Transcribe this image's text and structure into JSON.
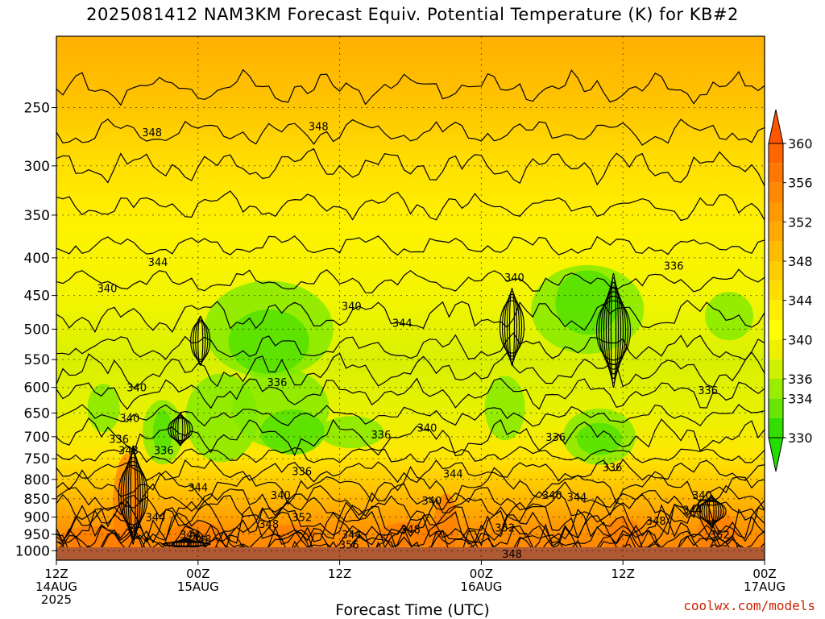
{
  "title": "2025081412 NAM3KM Forecast Equiv. Potential Temperature (K) for KB#2",
  "watermark": "coolwx.com/models",
  "chart_data": {
    "type": "heatmap",
    "title": "2025081412 NAM3KM Forecast Equiv. Potential Temperature (K) for KB#2",
    "xlabel": "Forecast Time (UTC)",
    "ylabel": "",
    "x_ticks": [
      {
        "hour": 0,
        "lines": [
          "12Z",
          "14AUG",
          "2025"
        ]
      },
      {
        "hour": 12,
        "lines": [
          "00Z",
          "15AUG"
        ]
      },
      {
        "hour": 24,
        "lines": [
          "12Z"
        ]
      },
      {
        "hour": 36,
        "lines": [
          "00Z",
          "16AUG"
        ]
      },
      {
        "hour": 48,
        "lines": [
          "12Z"
        ]
      },
      {
        "hour": 60,
        "lines": [
          "00Z",
          "17AUG"
        ]
      }
    ],
    "xlim": [
      0,
      60
    ],
    "y_ticks": [
      250,
      300,
      350,
      400,
      450,
      500,
      550,
      600,
      650,
      700,
      750,
      800,
      850,
      900,
      950,
      1000
    ],
    "ylim_hPa": [
      1030,
      200
    ],
    "y_scale": "log-pressure",
    "colorbar_levels": [
      330,
      332,
      334,
      336,
      338,
      340,
      342,
      344,
      346,
      348,
      350,
      352,
      354,
      356,
      358,
      360,
      362
    ],
    "colorbar_labels": [
      330,
      334,
      336,
      340,
      344,
      348,
      352,
      356,
      360
    ],
    "colorbar_colors": [
      "#33dd00",
      "#66e600",
      "#99ee00",
      "#ccf000",
      "#eef000",
      "#ffff00",
      "#ffee00",
      "#ffdd00",
      "#ffcc00",
      "#ffbb00",
      "#ffaa00",
      "#ff9900",
      "#ff8800",
      "#ff7700",
      "#ff6600",
      "#ff5500"
    ],
    "contour_labels": [
      {
        "hour": 8.1,
        "p": 270,
        "v": "348"
      },
      {
        "hour": 22.2,
        "p": 265,
        "v": "348"
      },
      {
        "hour": 8.6,
        "p": 405,
        "v": "344"
      },
      {
        "hour": 4.3,
        "p": 440,
        "v": "340"
      },
      {
        "hour": 25.0,
        "p": 465,
        "v": "340"
      },
      {
        "hour": 29.3,
        "p": 490,
        "v": "344"
      },
      {
        "hour": 38.8,
        "p": 425,
        "v": "340"
      },
      {
        "hour": 52.3,
        "p": 410,
        "v": "336"
      },
      {
        "hour": 18.7,
        "p": 590,
        "v": "336"
      },
      {
        "hour": 6.8,
        "p": 600,
        "v": "340"
      },
      {
        "hour": 6.2,
        "p": 660,
        "v": "340"
      },
      {
        "hour": 5.3,
        "p": 705,
        "v": "336"
      },
      {
        "hour": 9.1,
        "p": 730,
        "v": "336"
      },
      {
        "hour": 27.5,
        "p": 695,
        "v": "336"
      },
      {
        "hour": 31.4,
        "p": 680,
        "v": "340"
      },
      {
        "hour": 42.3,
        "p": 700,
        "v": "336"
      },
      {
        "hour": 55.2,
        "p": 605,
        "v": "336"
      },
      {
        "hour": 6.1,
        "p": 730,
        "v": "348"
      },
      {
        "hour": 20.8,
        "p": 780,
        "v": "336"
      },
      {
        "hour": 47.1,
        "p": 770,
        "v": "336"
      },
      {
        "hour": 12.0,
        "p": 820,
        "v": "344"
      },
      {
        "hour": 19.0,
        "p": 840,
        "v": "340"
      },
      {
        "hour": 33.6,
        "p": 785,
        "v": "344"
      },
      {
        "hour": 31.8,
        "p": 855,
        "v": "340"
      },
      {
        "hour": 42.0,
        "p": 840,
        "v": "340"
      },
      {
        "hour": 44.1,
        "p": 845,
        "v": "344"
      },
      {
        "hour": 54.7,
        "p": 840,
        "v": "340"
      },
      {
        "hour": 53.9,
        "p": 880,
        "v": "344"
      },
      {
        "hour": 8.4,
        "p": 900,
        "v": "344"
      },
      {
        "hour": 18.0,
        "p": 920,
        "v": "348"
      },
      {
        "hour": 20.8,
        "p": 900,
        "v": "352"
      },
      {
        "hour": 11.3,
        "p": 950,
        "v": "344"
      },
      {
        "hour": 12.3,
        "p": 965,
        "v": "348"
      },
      {
        "hour": 25.0,
        "p": 950,
        "v": "344"
      },
      {
        "hour": 30.0,
        "p": 935,
        "v": "348"
      },
      {
        "hour": 24.8,
        "p": 980,
        "v": "356"
      },
      {
        "hour": 38.0,
        "p": 930,
        "v": "352"
      },
      {
        "hour": 38.6,
        "p": 1010,
        "v": "348"
      },
      {
        "hour": 50.8,
        "p": 910,
        "v": "348"
      },
      {
        "hour": 56.2,
        "p": 950,
        "v": "352"
      }
    ]
  }
}
